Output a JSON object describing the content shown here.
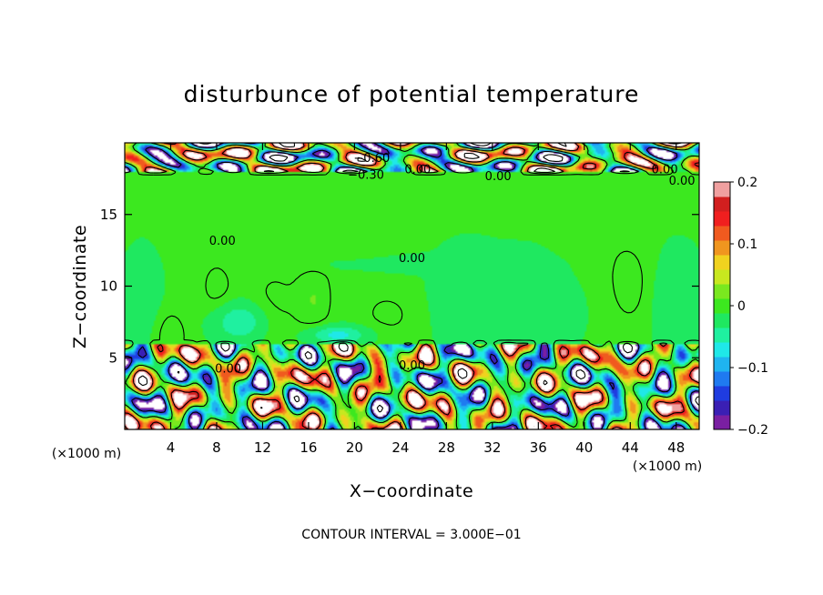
{
  "chart_data": {
    "type": "heatmap",
    "title": "disturbunce of potential temperature",
    "xlabel": "X−coordinate",
    "ylabel": "Z−coordinate",
    "x_unit_left": "(×1000 m)",
    "x_unit_right": "(×1000 m)",
    "xlim": [
      0,
      50
    ],
    "ylim": [
      0,
      20
    ],
    "x_ticks": [
      {
        "value": 4,
        "label": "4"
      },
      {
        "value": 8,
        "label": "8"
      },
      {
        "value": 12,
        "label": "12"
      },
      {
        "value": 16,
        "label": "16"
      },
      {
        "value": 20,
        "label": "20"
      },
      {
        "value": 24,
        "label": "24"
      },
      {
        "value": 28,
        "label": "28"
      },
      {
        "value": 32,
        "label": "32"
      },
      {
        "value": 36,
        "label": "36"
      },
      {
        "value": 40,
        "label": "40"
      },
      {
        "value": 44,
        "label": "44"
      },
      {
        "value": 48,
        "label": "48"
      }
    ],
    "y_ticks": [
      {
        "value": 5,
        "label": "5"
      },
      {
        "value": 10,
        "label": "10"
      },
      {
        "value": 15,
        "label": "15"
      }
    ],
    "colorbar": {
      "min": -0.2,
      "max": 0.2,
      "ticks": [
        {
          "value": 0.2,
          "label": "0.2"
        },
        {
          "value": 0.1,
          "label": "0.1"
        },
        {
          "value": 0,
          "label": "0"
        },
        {
          "value": -0.1,
          "label": "−0.1"
        },
        {
          "value": -0.2,
          "label": "−0.2"
        }
      ],
      "colors": [
        "#7a1fa2",
        "#3a1fb4",
        "#1f3ce0",
        "#1f7af0",
        "#1fb4f0",
        "#1fe8e8",
        "#1ff0a0",
        "#1fe860",
        "#3ce81f",
        "#7ae81f",
        "#c8e81f",
        "#f0d21f",
        "#f0961f",
        "#f05a1f",
        "#f01f1f",
        "#d21f1f",
        "#f0a0a0"
      ]
    },
    "contour_labels": [
      {
        "x": 21.5,
        "y": 19.0,
        "text": "−0.60"
      },
      {
        "x": 21.0,
        "y": 17.8,
        "text": "−0.30"
      },
      {
        "x": 25.5,
        "y": 18.2,
        "text": "0.00"
      },
      {
        "x": 32.5,
        "y": 17.7,
        "text": "0.00"
      },
      {
        "x": 47.0,
        "y": 18.2,
        "text": "0.00"
      },
      {
        "x": 48.5,
        "y": 17.4,
        "text": "0.00"
      },
      {
        "x": 8.5,
        "y": 13.2,
        "text": "0.00"
      },
      {
        "x": 25.0,
        "y": 12.0,
        "text": "0.00"
      },
      {
        "x": 9.0,
        "y": 4.3,
        "text": "0.00"
      },
      {
        "x": 25.0,
        "y": 4.5,
        "text": "0.00"
      }
    ],
    "fields": {
      "background_value": -0.01,
      "blobs": [
        {
          "x": 4,
          "y": 6.5,
          "rx": 1.4,
          "ry": 1.8,
          "v": 0.02
        },
        {
          "x": 8,
          "y": 10,
          "rx": 1.5,
          "ry": 2.0,
          "v": 0.015
        },
        {
          "x": 13,
          "y": 9,
          "rx": 2.5,
          "ry": 3.0,
          "v": 0.012
        },
        {
          "x": 16.5,
          "y": 9,
          "rx": 1.5,
          "ry": 2.5,
          "v": 0.02
        },
        {
          "x": 20,
          "y": 13,
          "rx": 3.0,
          "ry": 3.0,
          "v": 0.008
        },
        {
          "x": 23,
          "y": 8,
          "rx": 3.0,
          "ry": 2.0,
          "v": 0.012
        },
        {
          "x": 44,
          "y": 10,
          "rx": 2.0,
          "ry": 3.0,
          "v": 0.015
        },
        {
          "x": 40,
          "y": 13,
          "rx": 4.0,
          "ry": 3.0,
          "v": 0.006
        },
        {
          "x": 30,
          "y": 9,
          "rx": 3.0,
          "ry": 3.0,
          "v": -0.02
        },
        {
          "x": 36,
          "y": 9,
          "rx": 3.0,
          "ry": 3.0,
          "v": -0.022
        },
        {
          "x": 10,
          "y": 7.5,
          "rx": 2.0,
          "ry": 1.2,
          "v": -0.05
        },
        {
          "x": 18.5,
          "y": 6.6,
          "rx": 2.5,
          "ry": 0.6,
          "v": -0.06
        },
        {
          "x": 25,
          "y": 11.5,
          "rx": 8.0,
          "ry": 0.5,
          "v": -0.02
        },
        {
          "x": 1.5,
          "y": 9,
          "rx": 1.5,
          "ry": 3.0,
          "v": -0.015
        },
        {
          "x": 48,
          "y": 9,
          "rx": 2.0,
          "ry": 3.0,
          "v": -0.02
        }
      ],
      "lower_turbulent_layer": {
        "y_min": 0,
        "y_max": 6,
        "amplitude": 0.22
      },
      "upper_turbulent_layer": {
        "y_min": 18.0,
        "y_max": 20,
        "amplitude": 0.25
      }
    }
  },
  "footer": {
    "contour_interval": "CONTOUR INTERVAL = 3.000E−01"
  }
}
